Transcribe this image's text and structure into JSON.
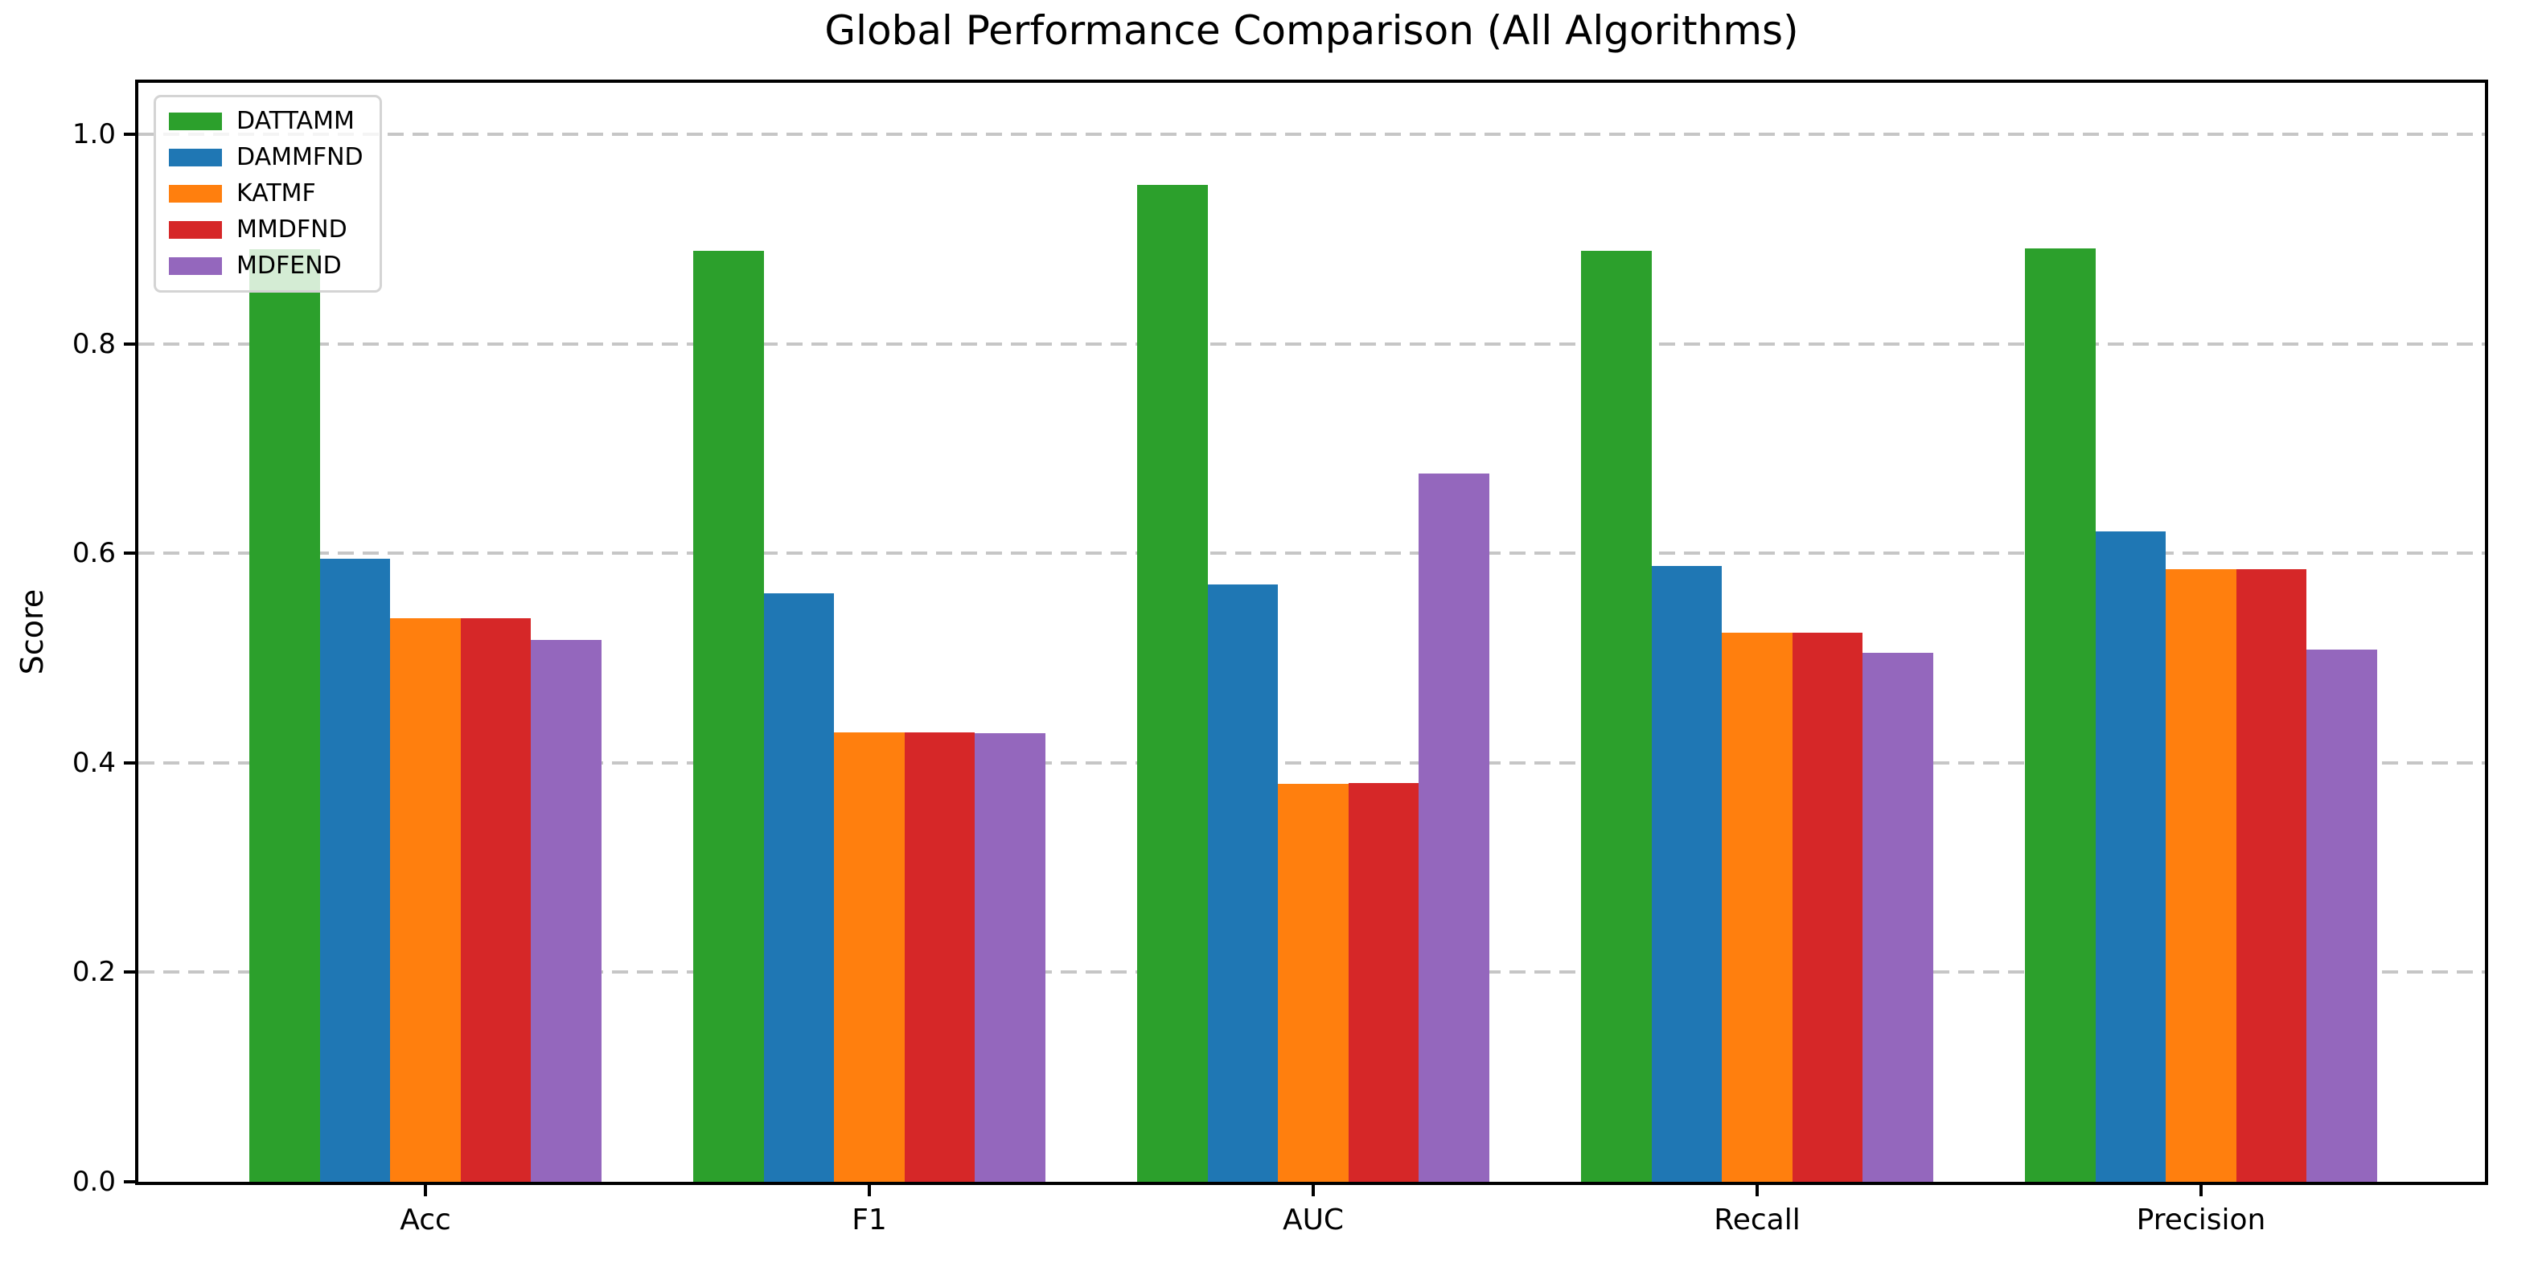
{
  "chart_data": {
    "type": "bar",
    "title": "Global Performance Comparison (All Algorithms)",
    "ylabel": "Score",
    "xlabel": "",
    "categories": [
      "Acc",
      "F1",
      "AUC",
      "Recall",
      "Precision"
    ],
    "series": [
      {
        "name": "DATTAMM",
        "color": "#2ca02c",
        "values": [
          0.89,
          0.889,
          0.952,
          0.889,
          0.891
        ]
      },
      {
        "name": "DAMMFND",
        "color": "#1f77b4",
        "values": [
          0.595,
          0.562,
          0.57,
          0.588,
          0.621
        ]
      },
      {
        "name": "KATMF",
        "color": "#ff7f0e",
        "values": [
          0.538,
          0.429,
          0.38,
          0.524,
          0.585
        ]
      },
      {
        "name": "MMDFND",
        "color": "#d62728",
        "values": [
          0.538,
          0.429,
          0.381,
          0.524,
          0.585
        ]
      },
      {
        "name": "MDFEND",
        "color": "#9467bd",
        "values": [
          0.517,
          0.428,
          0.676,
          0.505,
          0.508
        ]
      }
    ],
    "ytick_labels": [
      "0.0",
      "0.2",
      "0.4",
      "0.6",
      "0.8",
      "1.0"
    ],
    "ylim": [
      0,
      1.049
    ],
    "grid": "horizontal dashed",
    "grid_color": "#c6c6c6",
    "legend_position": "upper left",
    "background_color": "#ffffff",
    "spine_color": "#000000"
  }
}
